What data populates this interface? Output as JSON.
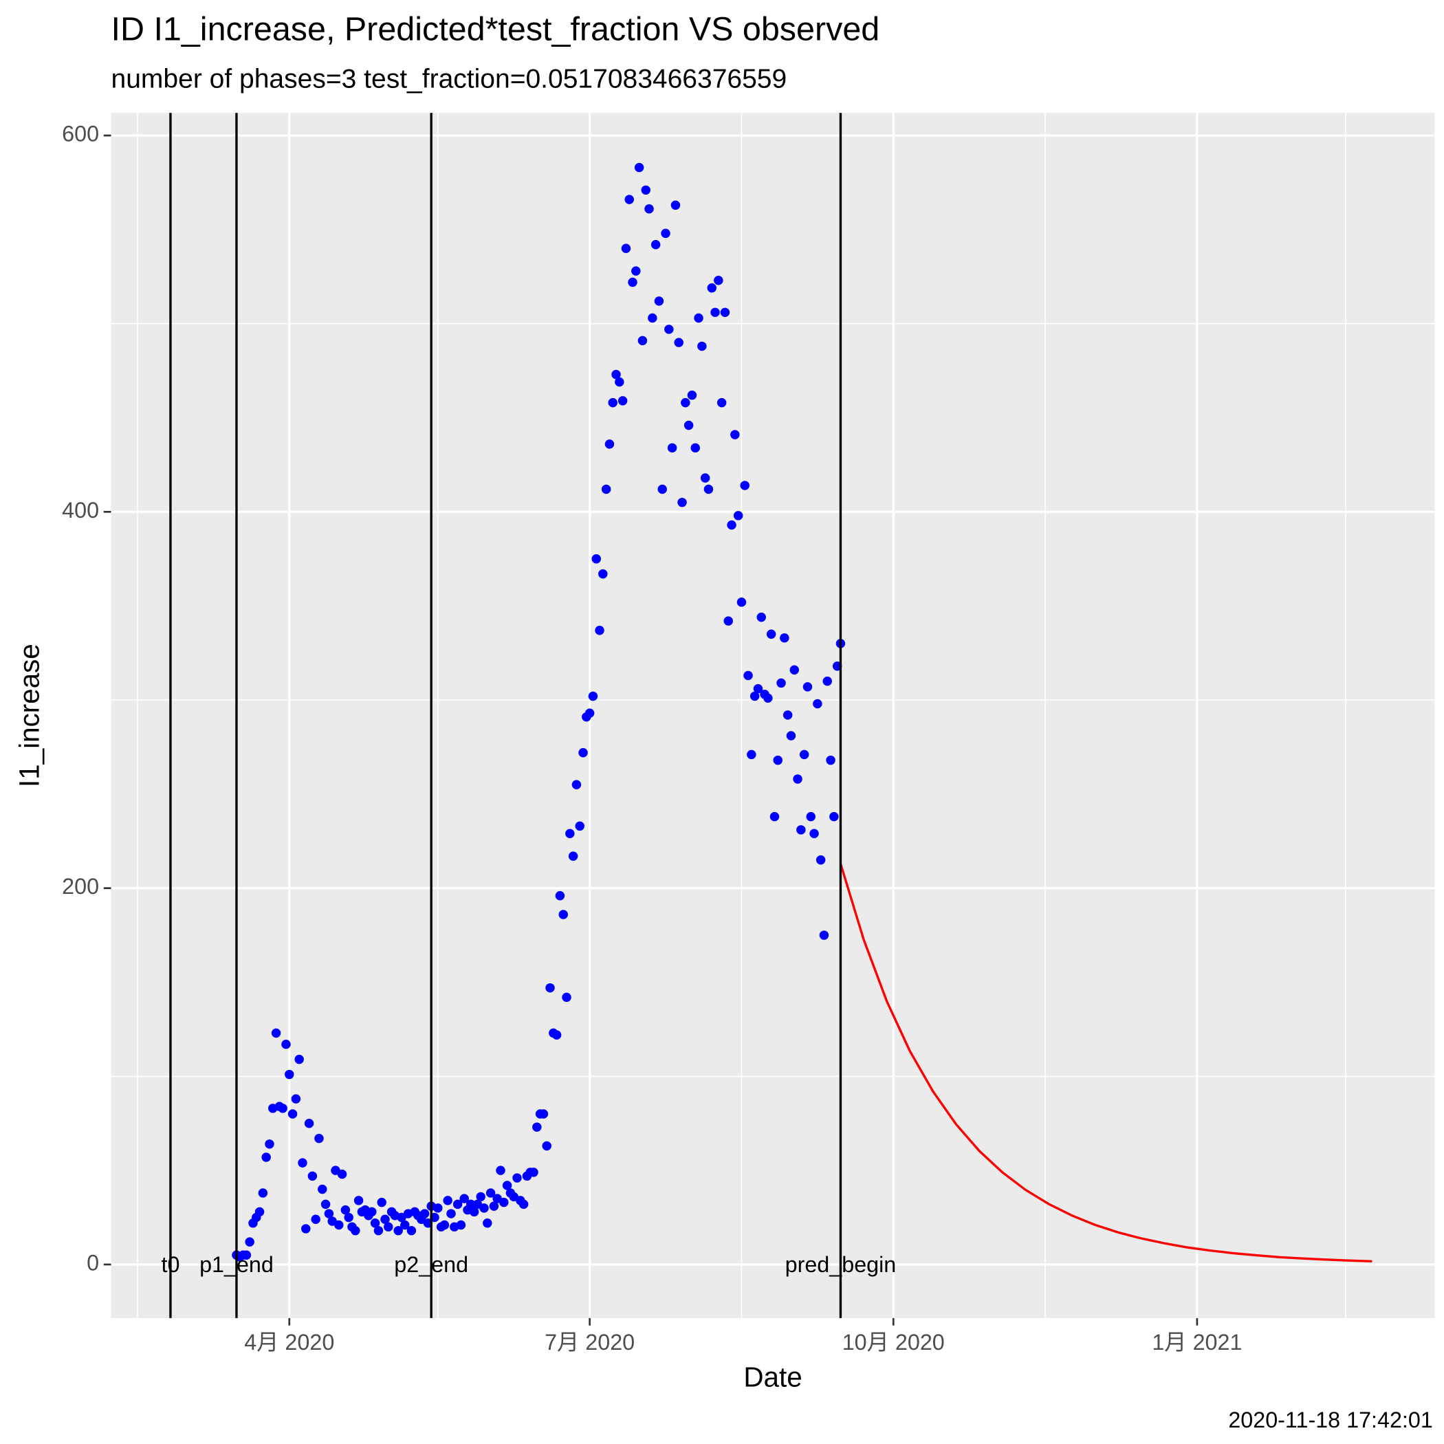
{
  "chart_data": {
    "type": "scatter",
    "title": "ID I1_increase, Predicted*test_fraction VS observed",
    "subtitle": "number of phases=3   test_fraction=0.0517083466376559",
    "x_label": "Date",
    "y_label": "I1_increase",
    "caption": "2020-11-18 17:42:01",
    "xlim": [
      "2020-02-07",
      "2021-03-14"
    ],
    "ylim": [
      -28.5,
      612
    ],
    "xticks": [
      {
        "value": "2020-04-01",
        "label": "4月 2020"
      },
      {
        "value": "2020-07-01",
        "label": "7月 2020"
      },
      {
        "value": "2020-10-01",
        "label": "10月 2020"
      },
      {
        "value": "2021-01-01",
        "label": "1月 2021"
      }
    ],
    "xminorticks": [
      "2020-02-15",
      "2020-05-16",
      "2020-08-16",
      "2020-11-16",
      "2021-02-15"
    ],
    "yticks": [
      0,
      200,
      400,
      600
    ],
    "yminorticks": [
      100,
      300,
      500
    ],
    "grid": true,
    "vlines": [
      {
        "x": "2020-02-25",
        "label": "t0"
      },
      {
        "x": "2020-03-16",
        "label": "p1_end"
      },
      {
        "x": "2020-05-14",
        "label": "p2_end"
      },
      {
        "x": "2020-09-15",
        "label": "pred_begin"
      }
    ],
    "series": [
      {
        "type": "scatter",
        "color": "#0000ff",
        "x": [
          "2020-03-16",
          "2020-03-17",
          "2020-03-18",
          "2020-03-19",
          "2020-03-20",
          "2020-03-21",
          "2020-03-22",
          "2020-03-23",
          "2020-03-24",
          "2020-03-25",
          "2020-03-26",
          "2020-03-27",
          "2020-03-28",
          "2020-03-29",
          "2020-03-30",
          "2020-03-31",
          "2020-04-01",
          "2020-04-02",
          "2020-04-03",
          "2020-04-04",
          "2020-04-05",
          "2020-04-06",
          "2020-04-07",
          "2020-04-08",
          "2020-04-09",
          "2020-04-10",
          "2020-04-11",
          "2020-04-12",
          "2020-04-13",
          "2020-04-14",
          "2020-04-15",
          "2020-04-16",
          "2020-04-17",
          "2020-04-18",
          "2020-04-19",
          "2020-04-20",
          "2020-04-21",
          "2020-04-22",
          "2020-04-23",
          "2020-04-24",
          "2020-04-25",
          "2020-04-26",
          "2020-04-27",
          "2020-04-28",
          "2020-04-29",
          "2020-04-30",
          "2020-05-01",
          "2020-05-02",
          "2020-05-03",
          "2020-05-04",
          "2020-05-05",
          "2020-05-06",
          "2020-05-07",
          "2020-05-08",
          "2020-05-09",
          "2020-05-10",
          "2020-05-11",
          "2020-05-12",
          "2020-05-13",
          "2020-05-14",
          "2020-05-15",
          "2020-05-16",
          "2020-05-17",
          "2020-05-18",
          "2020-05-19",
          "2020-05-20",
          "2020-05-21",
          "2020-05-22",
          "2020-05-23",
          "2020-05-24",
          "2020-05-25",
          "2020-05-26",
          "2020-05-27",
          "2020-05-28",
          "2020-05-29",
          "2020-05-30",
          "2020-05-31",
          "2020-06-01",
          "2020-06-02",
          "2020-06-03",
          "2020-06-04",
          "2020-06-05",
          "2020-06-06",
          "2020-06-07",
          "2020-06-08",
          "2020-06-09",
          "2020-06-10",
          "2020-06-11",
          "2020-06-12",
          "2020-06-13",
          "2020-06-14",
          "2020-06-15",
          "2020-06-16",
          "2020-06-17",
          "2020-06-18",
          "2020-06-19",
          "2020-06-20",
          "2020-06-21",
          "2020-06-22",
          "2020-06-23",
          "2020-06-24",
          "2020-06-25",
          "2020-06-26",
          "2020-06-27",
          "2020-06-28",
          "2020-06-29",
          "2020-06-30",
          "2020-07-01",
          "2020-07-02",
          "2020-07-03",
          "2020-07-04",
          "2020-07-05",
          "2020-07-06",
          "2020-07-07",
          "2020-07-08",
          "2020-07-09",
          "2020-07-10",
          "2020-07-11",
          "2020-07-12",
          "2020-07-13",
          "2020-07-14",
          "2020-07-15",
          "2020-07-16",
          "2020-07-17",
          "2020-07-18",
          "2020-07-19",
          "2020-07-20",
          "2020-07-21",
          "2020-07-22",
          "2020-07-23",
          "2020-07-24",
          "2020-07-25",
          "2020-07-26",
          "2020-07-27",
          "2020-07-28",
          "2020-07-29",
          "2020-07-30",
          "2020-07-31",
          "2020-08-01",
          "2020-08-02",
          "2020-08-03",
          "2020-08-04",
          "2020-08-05",
          "2020-08-06",
          "2020-08-07",
          "2020-08-08",
          "2020-08-09",
          "2020-08-10",
          "2020-08-11",
          "2020-08-12",
          "2020-08-13",
          "2020-08-14",
          "2020-08-15",
          "2020-08-16",
          "2020-08-17",
          "2020-08-18",
          "2020-08-19",
          "2020-08-20",
          "2020-08-21",
          "2020-08-22",
          "2020-08-23",
          "2020-08-24",
          "2020-08-25",
          "2020-08-26",
          "2020-08-27",
          "2020-08-28",
          "2020-08-29",
          "2020-08-30",
          "2020-08-31",
          "2020-09-01",
          "2020-09-02",
          "2020-09-03",
          "2020-09-04",
          "2020-09-05",
          "2020-09-06",
          "2020-09-07",
          "2020-09-08",
          "2020-09-09",
          "2020-09-10",
          "2020-09-11",
          "2020-09-12",
          "2020-09-13",
          "2020-09-14",
          "2020-09-15"
        ],
        "values": [
          5,
          4,
          5,
          5,
          12,
          22,
          25,
          28,
          38,
          57,
          64,
          83,
          123,
          84,
          83,
          117,
          101,
          80,
          88,
          109,
          54,
          19,
          75,
          47,
          24,
          67,
          40,
          32,
          27,
          23,
          50,
          21,
          48,
          29,
          25,
          20,
          18,
          34,
          28,
          29,
          26,
          28,
          22,
          18,
          33,
          24,
          20,
          28,
          26,
          18,
          25,
          21,
          27,
          18,
          28,
          26,
          24,
          27,
          22,
          31,
          25,
          30,
          20,
          21,
          34,
          27,
          20,
          32,
          21,
          35,
          29,
          32,
          28,
          32,
          36,
          30,
          22,
          38,
          31,
          35,
          50,
          33,
          42,
          38,
          36,
          46,
          34,
          32,
          47,
          49,
          49,
          73,
          80,
          80,
          63,
          147,
          123,
          122,
          196,
          186,
          142,
          229,
          217,
          255,
          233,
          272,
          291,
          293,
          302,
          375,
          337,
          367,
          412,
          436,
          458,
          473,
          469,
          459,
          540,
          566,
          522,
          528,
          583,
          491,
          571,
          561,
          503,
          542,
          512,
          412,
          548,
          497,
          434,
          563,
          490,
          405,
          458,
          446,
          462,
          434,
          503,
          488,
          418,
          412,
          519,
          506,
          523,
          458,
          506,
          342,
          393,
          441,
          398,
          352,
          414,
          313,
          271,
          302,
          306,
          344,
          303,
          301,
          335,
          238,
          268,
          309,
          333,
          292,
          281,
          316,
          258,
          231,
          271,
          307,
          238,
          229,
          298,
          215,
          175,
          310,
          268,
          238,
          318,
          330
        ]
      },
      {
        "type": "line",
        "color": "#ff0000",
        "x": [
          "2020-09-15",
          "2020-09-22",
          "2020-09-29",
          "2020-10-06",
          "2020-10-13",
          "2020-10-20",
          "2020-10-27",
          "2020-11-03",
          "2020-11-10",
          "2020-11-17",
          "2020-11-24",
          "2020-12-01",
          "2020-12-08",
          "2020-12-15",
          "2020-12-22",
          "2020-12-29",
          "2021-01-05",
          "2021-01-12",
          "2021-01-19",
          "2021-01-26",
          "2021-02-02",
          "2021-02-09",
          "2021-02-16",
          "2021-02-23"
        ],
        "values": [
          213,
          172.7,
          139.9,
          113.4,
          92.0,
          74.5,
          60.4,
          49.0,
          39.7,
          32.2,
          26.1,
          21.1,
          17.1,
          13.9,
          11.3,
          9.1,
          7.4,
          6.0,
          4.9,
          3.9,
          3.2,
          2.6,
          2.1,
          1.7
        ]
      }
    ]
  }
}
